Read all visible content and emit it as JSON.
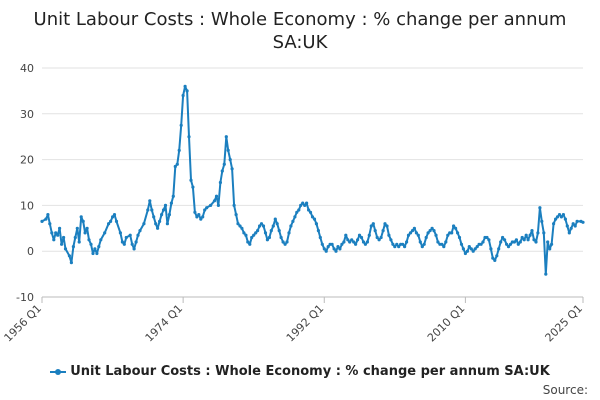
{
  "title_line1": "Unit Labour Costs : Whole Economy : % change per annum",
  "title_line2": "SA:UK",
  "source_label": "Source:",
  "colors": {
    "series": "#1b7fbf",
    "grid": "#e2e2e2",
    "axis": "#bbbbbb"
  },
  "chart_data": {
    "type": "line",
    "title": "Unit Labour Costs : Whole Economy : % change per annum SA:UK",
    "xlabel": "",
    "ylabel": "",
    "x_range": [
      "1956 Q1",
      "2025 Q1"
    ],
    "x_ticks": [
      "1956 Q1",
      "1974 Q1",
      "1992 Q1",
      "2010 Q1",
      "2025 Q1"
    ],
    "ylim": [
      -10,
      40
    ],
    "y_ticks": [
      -10,
      0,
      10,
      20,
      30,
      40
    ],
    "grid": "horizontal",
    "legend": "bottom",
    "series": [
      {
        "name": "Unit Labour Costs : Whole Economy : % change per annum SA:UK",
        "points": [
          [
            1956.0,
            6.5
          ],
          [
            1956.5,
            7.0
          ],
          [
            1956.75,
            8.0
          ],
          [
            1957.0,
            6.0
          ],
          [
            1957.25,
            4.0
          ],
          [
            1957.5,
            2.5
          ],
          [
            1957.75,
            4.0
          ],
          [
            1958.0,
            3.5
          ],
          [
            1958.25,
            5.0
          ],
          [
            1958.5,
            1.5
          ],
          [
            1958.75,
            3.0
          ],
          [
            1959.0,
            0.5
          ],
          [
            1959.5,
            -1.0
          ],
          [
            1959.75,
            -2.5
          ],
          [
            1960.0,
            1.0
          ],
          [
            1960.25,
            3.0
          ],
          [
            1960.5,
            5.0
          ],
          [
            1960.75,
            2.0
          ],
          [
            1961.0,
            7.5
          ],
          [
            1961.25,
            6.5
          ],
          [
            1961.5,
            4.0
          ],
          [
            1961.75,
            5.0
          ],
          [
            1962.0,
            2.5
          ],
          [
            1962.25,
            1.5
          ],
          [
            1962.5,
            -0.5
          ],
          [
            1962.75,
            0.5
          ],
          [
            1963.0,
            -0.5
          ],
          [
            1963.25,
            1.0
          ],
          [
            1963.5,
            2.5
          ],
          [
            1964.0,
            4.0
          ],
          [
            1964.5,
            6.0
          ],
          [
            1964.75,
            6.5
          ],
          [
            1965.0,
            7.5
          ],
          [
            1965.25,
            8.0
          ],
          [
            1965.5,
            6.5
          ],
          [
            1966.0,
            4.0
          ],
          [
            1966.25,
            2.0
          ],
          [
            1966.5,
            1.5
          ],
          [
            1966.75,
            3.0
          ],
          [
            1967.25,
            3.5
          ],
          [
            1967.5,
            1.5
          ],
          [
            1967.75,
            0.5
          ],
          [
            1968.0,
            2.0
          ],
          [
            1968.25,
            3.5
          ],
          [
            1968.5,
            4.5
          ],
          [
            1969.0,
            6.0
          ],
          [
            1969.5,
            9.0
          ],
          [
            1969.75,
            11.0
          ],
          [
            1970.0,
            9.0
          ],
          [
            1970.25,
            7.5
          ],
          [
            1970.5,
            6.0
          ],
          [
            1970.75,
            5.0
          ],
          [
            1971.0,
            6.5
          ],
          [
            1971.25,
            8.0
          ],
          [
            1971.5,
            9.0
          ],
          [
            1971.75,
            10.0
          ],
          [
            1972.0,
            6.0
          ],
          [
            1972.25,
            8.0
          ],
          [
            1972.5,
            10.5
          ],
          [
            1972.75,
            12.0
          ],
          [
            1973.0,
            18.5
          ],
          [
            1973.25,
            19.0
          ],
          [
            1973.5,
            22.0
          ],
          [
            1973.75,
            27.5
          ],
          [
            1974.0,
            34.0
          ],
          [
            1974.25,
            36.0
          ],
          [
            1974.5,
            35.0
          ],
          [
            1974.75,
            25.0
          ],
          [
            1975.0,
            15.5
          ],
          [
            1975.25,
            14.0
          ],
          [
            1975.5,
            8.5
          ],
          [
            1975.75,
            7.5
          ],
          [
            1976.0,
            8.0
          ],
          [
            1976.25,
            7.0
          ],
          [
            1976.5,
            7.5
          ],
          [
            1976.75,
            9.0
          ],
          [
            1977.0,
            9.5
          ],
          [
            1977.5,
            10.0
          ],
          [
            1978.0,
            11.0
          ],
          [
            1978.25,
            12.0
          ],
          [
            1978.5,
            10.0
          ],
          [
            1978.75,
            15.0
          ],
          [
            1979.0,
            17.5
          ],
          [
            1979.25,
            19.0
          ],
          [
            1979.5,
            25.0
          ],
          [
            1979.75,
            22.0
          ],
          [
            1980.0,
            20.0
          ],
          [
            1980.25,
            18.0
          ],
          [
            1980.5,
            10.0
          ],
          [
            1980.75,
            8.0
          ],
          [
            1981.0,
            6.0
          ],
          [
            1981.25,
            5.5
          ],
          [
            1981.5,
            5.0
          ],
          [
            1981.75,
            4.0
          ],
          [
            1982.0,
            3.5
          ],
          [
            1982.25,
            2.0
          ],
          [
            1982.5,
            1.5
          ],
          [
            1982.75,
            3.0
          ],
          [
            1983.0,
            3.5
          ],
          [
            1983.25,
            4.0
          ],
          [
            1983.5,
            4.5
          ],
          [
            1983.75,
            5.5
          ],
          [
            1984.0,
            6.0
          ],
          [
            1984.25,
            5.5
          ],
          [
            1984.5,
            4.0
          ],
          [
            1984.75,
            2.5
          ],
          [
            1985.0,
            3.0
          ],
          [
            1985.25,
            4.5
          ],
          [
            1985.5,
            5.5
          ],
          [
            1985.75,
            7.0
          ],
          [
            1986.0,
            6.0
          ],
          [
            1986.25,
            4.5
          ],
          [
            1986.5,
            3.0
          ],
          [
            1986.75,
            2.0
          ],
          [
            1987.0,
            1.5
          ],
          [
            1987.25,
            2.0
          ],
          [
            1987.5,
            4.0
          ],
          [
            1987.75,
            5.5
          ],
          [
            1988.0,
            6.5
          ],
          [
            1988.25,
            7.5
          ],
          [
            1988.5,
            8.5
          ],
          [
            1988.75,
            9.0
          ],
          [
            1989.0,
            10.0
          ],
          [
            1989.25,
            10.5
          ],
          [
            1989.5,
            10.0
          ],
          [
            1989.75,
            10.5
          ],
          [
            1990.0,
            9.0
          ],
          [
            1990.25,
            8.5
          ],
          [
            1990.5,
            7.5
          ],
          [
            1990.75,
            7.0
          ],
          [
            1991.0,
            6.0
          ],
          [
            1991.25,
            4.5
          ],
          [
            1991.5,
            3.0
          ],
          [
            1991.75,
            1.5
          ],
          [
            1992.0,
            0.5
          ],
          [
            1992.25,
            0.0
          ],
          [
            1992.5,
            1.0
          ],
          [
            1992.75,
            1.5
          ],
          [
            1993.0,
            1.5
          ],
          [
            1993.25,
            0.5
          ],
          [
            1993.5,
            0.0
          ],
          [
            1993.75,
            1.0
          ],
          [
            1994.0,
            0.5
          ],
          [
            1994.25,
            1.5
          ],
          [
            1994.5,
            2.0
          ],
          [
            1994.75,
            3.5
          ],
          [
            1995.0,
            2.5
          ],
          [
            1995.25,
            2.0
          ],
          [
            1995.5,
            2.5
          ],
          [
            1995.75,
            2.0
          ],
          [
            1996.0,
            1.5
          ],
          [
            1996.25,
            2.5
          ],
          [
            1996.5,
            3.5
          ],
          [
            1996.75,
            3.0
          ],
          [
            1997.0,
            2.0
          ],
          [
            1997.25,
            1.5
          ],
          [
            1997.5,
            2.0
          ],
          [
            1997.75,
            3.5
          ],
          [
            1998.0,
            5.5
          ],
          [
            1998.25,
            6.0
          ],
          [
            1998.5,
            4.5
          ],
          [
            1998.75,
            3.0
          ],
          [
            1999.0,
            2.5
          ],
          [
            1999.25,
            3.0
          ],
          [
            1999.5,
            4.5
          ],
          [
            1999.75,
            6.0
          ],
          [
            2000.0,
            5.5
          ],
          [
            2000.25,
            3.5
          ],
          [
            2000.5,
            2.5
          ],
          [
            2000.75,
            1.5
          ],
          [
            2001.0,
            1.0
          ],
          [
            2001.25,
            1.5
          ],
          [
            2001.5,
            1.0
          ],
          [
            2001.75,
            1.5
          ],
          [
            2002.0,
            1.5
          ],
          [
            2002.25,
            1.0
          ],
          [
            2002.5,
            2.0
          ],
          [
            2002.75,
            3.5
          ],
          [
            2003.0,
            4.0
          ],
          [
            2003.25,
            4.5
          ],
          [
            2003.5,
            5.0
          ],
          [
            2003.75,
            4.0
          ],
          [
            2004.0,
            3.5
          ],
          [
            2004.25,
            2.0
          ],
          [
            2004.5,
            1.0
          ],
          [
            2004.75,
            1.5
          ],
          [
            2005.0,
            3.0
          ],
          [
            2005.25,
            4.0
          ],
          [
            2005.5,
            4.5
          ],
          [
            2005.75,
            5.0
          ],
          [
            2006.0,
            4.5
          ],
          [
            2006.25,
            3.5
          ],
          [
            2006.5,
            2.0
          ],
          [
            2006.75,
            1.5
          ],
          [
            2007.0,
            1.5
          ],
          [
            2007.25,
            1.0
          ],
          [
            2007.5,
            2.0
          ],
          [
            2007.75,
            3.5
          ],
          [
            2008.0,
            4.0
          ],
          [
            2008.25,
            4.0
          ],
          [
            2008.5,
            5.5
          ],
          [
            2008.75,
            5.0
          ],
          [
            2009.0,
            4.0
          ],
          [
            2009.25,
            3.0
          ],
          [
            2009.5,
            1.5
          ],
          [
            2009.75,
            0.5
          ],
          [
            2010.0,
            -0.5
          ],
          [
            2010.25,
            0.0
          ],
          [
            2010.5,
            1.0
          ],
          [
            2010.75,
            0.5
          ],
          [
            2011.0,
            0.0
          ],
          [
            2011.25,
            0.5
          ],
          [
            2011.5,
            1.0
          ],
          [
            2011.75,
            1.5
          ],
          [
            2012.0,
            1.5
          ],
          [
            2012.25,
            2.0
          ],
          [
            2012.5,
            3.0
          ],
          [
            2012.75,
            3.0
          ],
          [
            2013.0,
            2.5
          ],
          [
            2013.25,
            0.5
          ],
          [
            2013.5,
            -1.5
          ],
          [
            2013.75,
            -2.0
          ],
          [
            2014.0,
            -1.0
          ],
          [
            2014.25,
            0.5
          ],
          [
            2014.5,
            2.0
          ],
          [
            2014.75,
            3.0
          ],
          [
            2015.0,
            2.5
          ],
          [
            2015.25,
            1.5
          ],
          [
            2015.5,
            1.0
          ],
          [
            2015.75,
            1.5
          ],
          [
            2016.0,
            2.0
          ],
          [
            2016.25,
            2.0
          ],
          [
            2016.5,
            2.5
          ],
          [
            2016.75,
            1.5
          ],
          [
            2017.0,
            2.0
          ],
          [
            2017.25,
            3.0
          ],
          [
            2017.5,
            2.5
          ],
          [
            2017.75,
            3.5
          ],
          [
            2018.0,
            2.5
          ],
          [
            2018.25,
            3.5
          ],
          [
            2018.5,
            4.5
          ],
          [
            2018.75,
            2.5
          ],
          [
            2019.0,
            2.0
          ],
          [
            2019.25,
            4.0
          ],
          [
            2019.5,
            9.5
          ],
          [
            2019.75,
            6.5
          ],
          [
            2020.0,
            4.0
          ],
          [
            2020.25,
            -5.0
          ],
          [
            2020.5,
            2.0
          ],
          [
            2020.75,
            0.5
          ],
          [
            2021.0,
            1.5
          ],
          [
            2021.25,
            6.0
          ],
          [
            2021.5,
            7.0
          ],
          [
            2021.75,
            7.5
          ],
          [
            2022.0,
            8.0
          ],
          [
            2022.25,
            7.5
          ],
          [
            2022.5,
            8.0
          ],
          [
            2022.75,
            7.0
          ],
          [
            2023.0,
            5.5
          ],
          [
            2023.25,
            4.0
          ],
          [
            2023.5,
            5.0
          ],
          [
            2023.75,
            6.0
          ],
          [
            2024.0,
            5.5
          ],
          [
            2024.25,
            6.5
          ],
          [
            2024.75,
            6.5
          ],
          [
            2025.0,
            6.3
          ]
        ]
      }
    ]
  }
}
